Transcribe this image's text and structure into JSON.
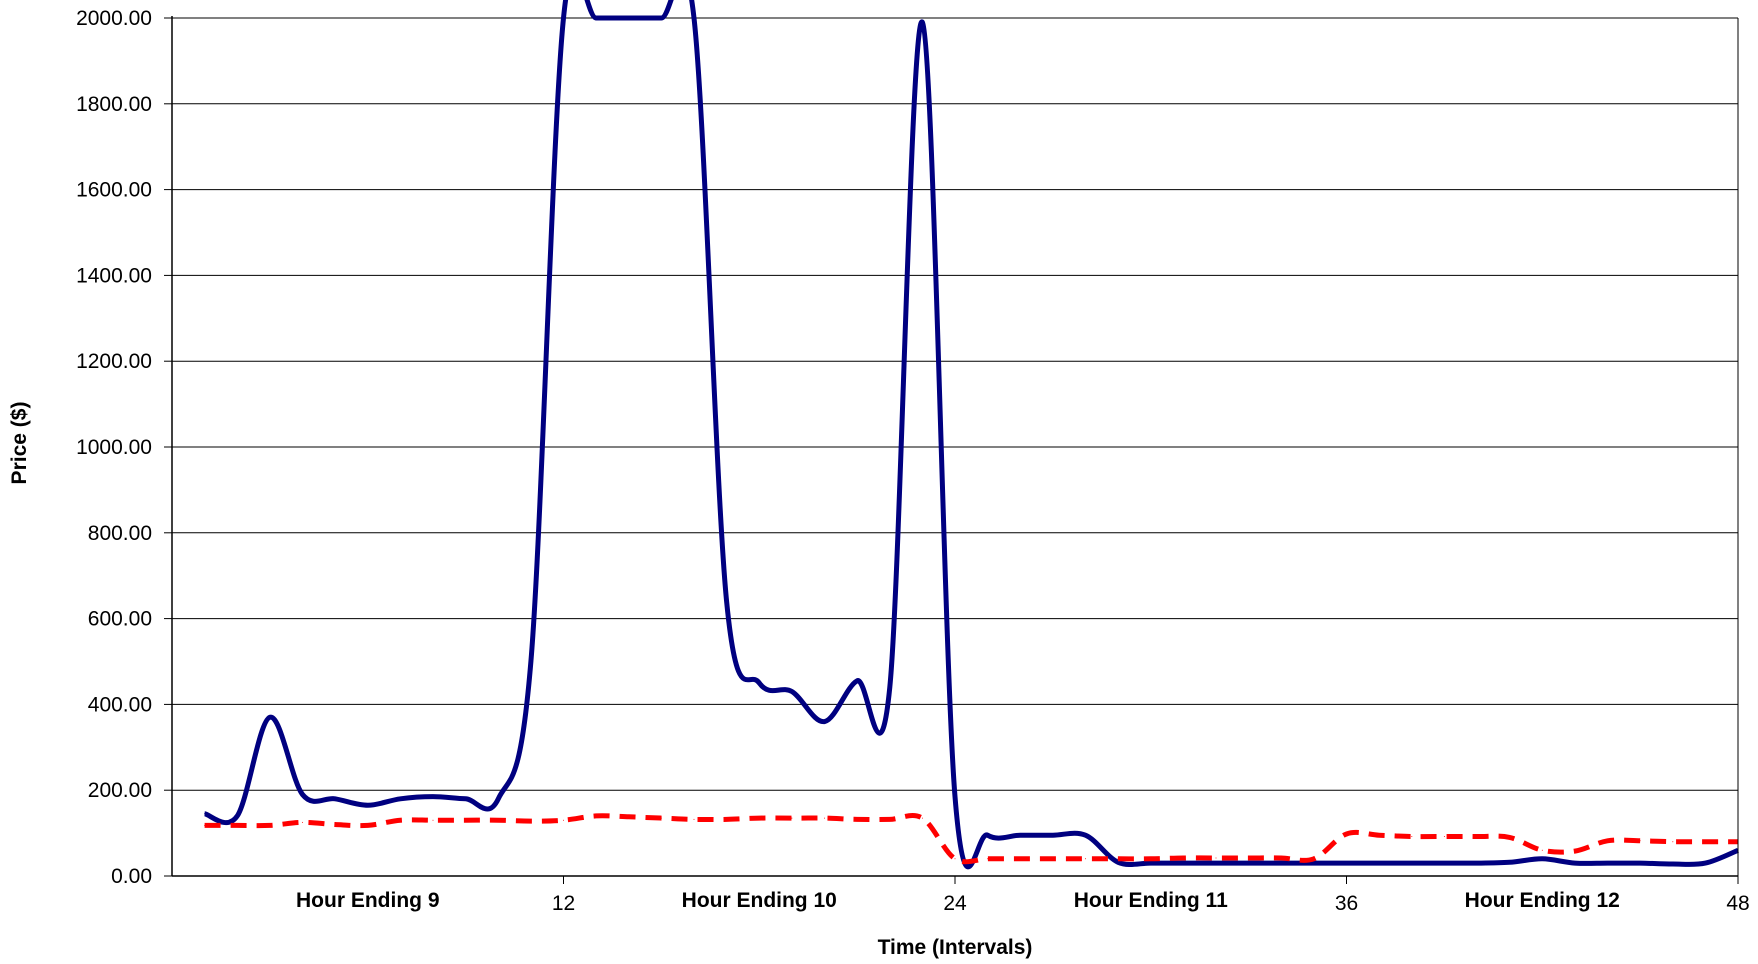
{
  "chart_data": {
    "type": "line",
    "title": "",
    "xlabel": "Time (Intervals)",
    "ylabel": "Price ($)",
    "xlim": [
      0,
      48
    ],
    "ylim": [
      0,
      2000
    ],
    "grid": true,
    "legend": "none",
    "y_ticks": [
      "0.00",
      "200.00",
      "400.00",
      "600.00",
      "800.00",
      "1000.00",
      "1200.00",
      "1400.00",
      "1600.00",
      "1800.00",
      "2000.00"
    ],
    "x_ticks": [
      {
        "value": 12,
        "label": "12"
      },
      {
        "value": 24,
        "label": "24"
      },
      {
        "value": 36,
        "label": "36"
      },
      {
        "value": 48,
        "label": "48"
      }
    ],
    "hour_labels": [
      {
        "text": "Hour Ending 9",
        "x_center": 6
      },
      {
        "text": "Hour Ending 10",
        "x_center": 18
      },
      {
        "text": "Hour Ending 11",
        "x_center": 30
      },
      {
        "text": "Hour Ending 12",
        "x_center": 42
      }
    ],
    "series": [
      {
        "color": "#000080",
        "style": "solid",
        "points": [
          [
            1,
            145
          ],
          [
            2,
            140
          ],
          [
            3,
            370
          ],
          [
            4,
            190
          ],
          [
            5,
            180
          ],
          [
            6,
            165
          ],
          [
            7,
            180
          ],
          [
            8,
            185
          ],
          [
            9,
            180
          ],
          [
            10,
            180
          ],
          [
            11,
            500
          ],
          [
            12,
            2000
          ],
          [
            13,
            2000
          ],
          [
            14,
            2000
          ],
          [
            15,
            2000
          ],
          [
            16,
            2000
          ],
          [
            17,
            640
          ],
          [
            18,
            450
          ],
          [
            19,
            430
          ],
          [
            20,
            360
          ],
          [
            21,
            455
          ],
          [
            22,
            440
          ],
          [
            23,
            1990
          ],
          [
            24,
            185
          ],
          [
            25,
            95
          ],
          [
            26,
            95
          ],
          [
            27,
            95
          ],
          [
            28,
            95
          ],
          [
            29,
            32
          ],
          [
            30,
            30
          ],
          [
            31,
            30
          ],
          [
            32,
            30
          ],
          [
            33,
            30
          ],
          [
            34,
            30
          ],
          [
            35,
            30
          ],
          [
            36,
            30
          ],
          [
            37,
            30
          ],
          [
            38,
            30
          ],
          [
            39,
            30
          ],
          [
            40,
            30
          ],
          [
            41,
            32
          ],
          [
            42,
            40
          ],
          [
            43,
            30
          ],
          [
            44,
            30
          ],
          [
            45,
            30
          ],
          [
            46,
            28
          ],
          [
            47,
            30
          ],
          [
            48,
            60
          ]
        ]
      },
      {
        "color": "#ff0000",
        "style": "dashed",
        "points": [
          [
            1,
            118
          ],
          [
            2,
            118
          ],
          [
            3,
            118
          ],
          [
            4,
            125
          ],
          [
            5,
            120
          ],
          [
            6,
            118
          ],
          [
            7,
            130
          ],
          [
            8,
            130
          ],
          [
            9,
            130
          ],
          [
            10,
            130
          ],
          [
            11,
            128
          ],
          [
            12,
            130
          ],
          [
            13,
            140
          ],
          [
            14,
            138
          ],
          [
            15,
            135
          ],
          [
            16,
            132
          ],
          [
            17,
            132
          ],
          [
            18,
            135
          ],
          [
            19,
            135
          ],
          [
            20,
            135
          ],
          [
            21,
            132
          ],
          [
            22,
            132
          ],
          [
            23,
            135
          ],
          [
            24,
            40
          ],
          [
            25,
            40
          ],
          [
            26,
            40
          ],
          [
            27,
            40
          ],
          [
            28,
            40
          ],
          [
            29,
            40
          ],
          [
            30,
            40
          ],
          [
            31,
            42
          ],
          [
            32,
            42
          ],
          [
            33,
            42
          ],
          [
            34,
            42
          ],
          [
            35,
            40
          ],
          [
            36,
            98
          ],
          [
            37,
            95
          ],
          [
            38,
            92
          ],
          [
            39,
            92
          ],
          [
            40,
            92
          ],
          [
            41,
            90
          ],
          [
            42,
            60
          ],
          [
            43,
            58
          ],
          [
            44,
            82
          ],
          [
            45,
            82
          ],
          [
            46,
            80
          ],
          [
            47,
            80
          ],
          [
            48,
            80
          ]
        ]
      }
    ]
  }
}
